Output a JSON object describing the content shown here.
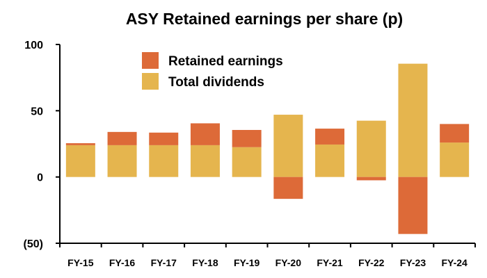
{
  "chart_data": {
    "type": "bar",
    "stacked": true,
    "title": "ASY Retained earnings per share (p)",
    "xlabel": "",
    "ylabel": "",
    "categories": [
      "FY-15",
      "FY-16",
      "FY-17",
      "FY-18",
      "FY-19",
      "FY-20",
      "FY-21",
      "FY-22",
      "FY-23",
      "FY-24"
    ],
    "series": [
      {
        "name": "Total dividends",
        "color": "#E5B54E",
        "values": [
          24,
          24,
          24,
          24,
          22.5,
          47,
          24.5,
          42.5,
          85.5,
          26
        ]
      },
      {
        "name": "Retained earnings",
        "color": "#DD6A38",
        "values": [
          1.5,
          10,
          9.5,
          16.5,
          13,
          -16.5,
          12,
          -2.5,
          -43,
          14
        ]
      }
    ],
    "ylim": [
      -50,
      100
    ],
    "yticks": [
      -50,
      0,
      50,
      100
    ],
    "ytick_labels": [
      "(50)",
      "0",
      "50",
      "100"
    ],
    "grid": false,
    "legend_position": "top-left inside",
    "legend_order": [
      "Retained earnings",
      "Total dividends"
    ]
  }
}
